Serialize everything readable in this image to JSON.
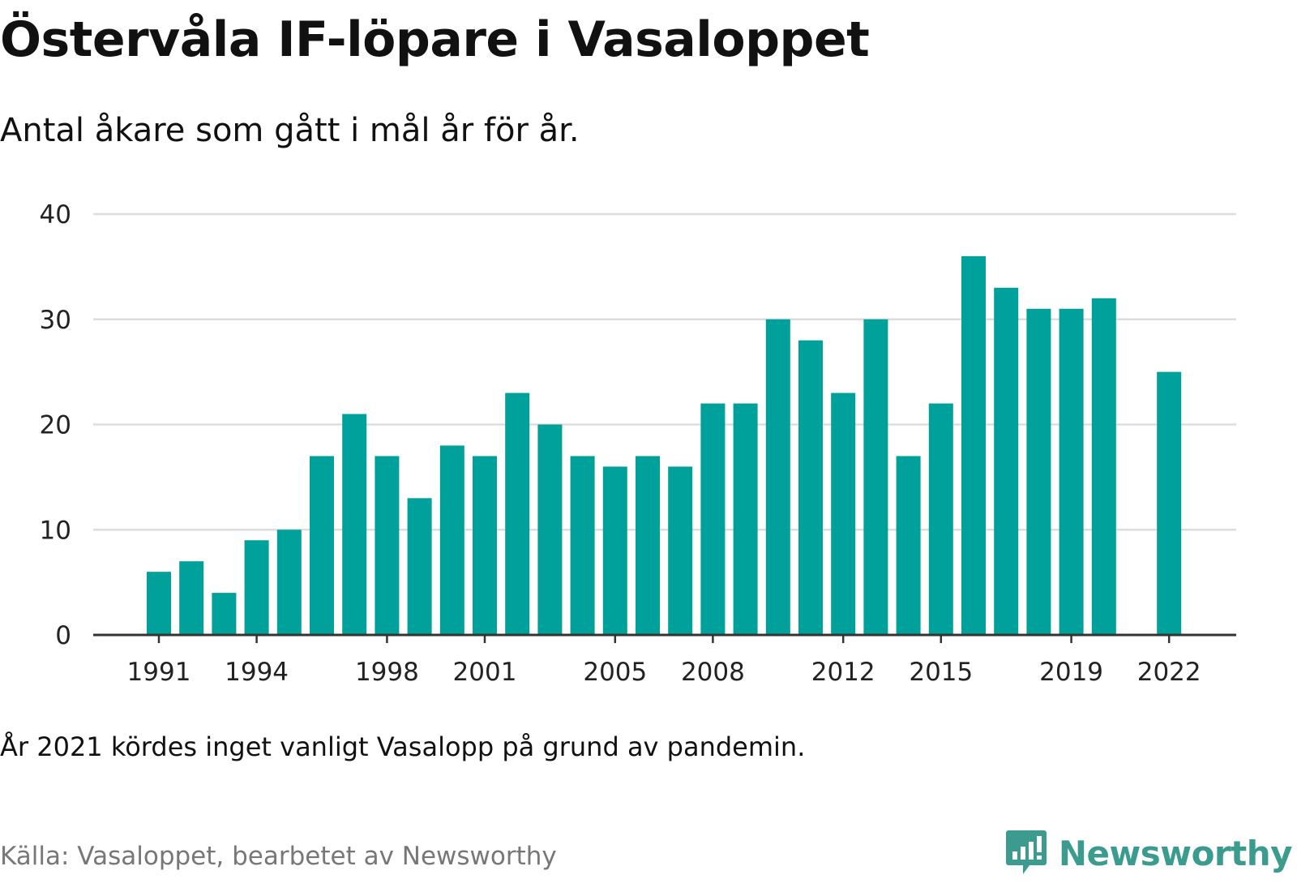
{
  "title": "Östervåla IF-löpare i Vasaloppet",
  "subtitle": "Antal åkare som gått i mål år för år.",
  "footnote": "År 2021 kördes inget vanligt Vasalopp på grund av pandemin.",
  "source": "Källa: Vasaloppet, bearbetet av Newsworthy",
  "brand": {
    "name": "Newsworthy",
    "icon": "newsworthy-logo-icon",
    "color": "#3b9b8f"
  },
  "chart_data": {
    "type": "bar",
    "title": "Östervåla IF-löpare i Vasaloppet",
    "subtitle": "Antal åkare som gått i mål år för år.",
    "xlabel": "",
    "ylabel": "",
    "x": [
      1991,
      1992,
      1993,
      1994,
      1995,
      1996,
      1997,
      1998,
      1999,
      2000,
      2001,
      2002,
      2003,
      2004,
      2005,
      2006,
      2007,
      2008,
      2009,
      2010,
      2011,
      2012,
      2013,
      2014,
      2015,
      2016,
      2017,
      2018,
      2019,
      2020,
      2021,
      2022
    ],
    "values": [
      6,
      7,
      4,
      9,
      10,
      17,
      21,
      17,
      13,
      18,
      17,
      23,
      20,
      17,
      16,
      17,
      16,
      22,
      22,
      30,
      28,
      23,
      30,
      17,
      22,
      36,
      33,
      31,
      31,
      32,
      null,
      25
    ],
    "x_tick_labels": [
      "1991",
      "1994",
      "1998",
      "2001",
      "2005",
      "2008",
      "2012",
      "2015",
      "2019",
      "2022"
    ],
    "y_ticks": [
      0,
      10,
      20,
      30,
      40
    ],
    "ylim": [
      0,
      40
    ],
    "grid": true,
    "bar_color": "#00a19a",
    "grid_color": "#dddddd",
    "axis_color": "#333333"
  }
}
